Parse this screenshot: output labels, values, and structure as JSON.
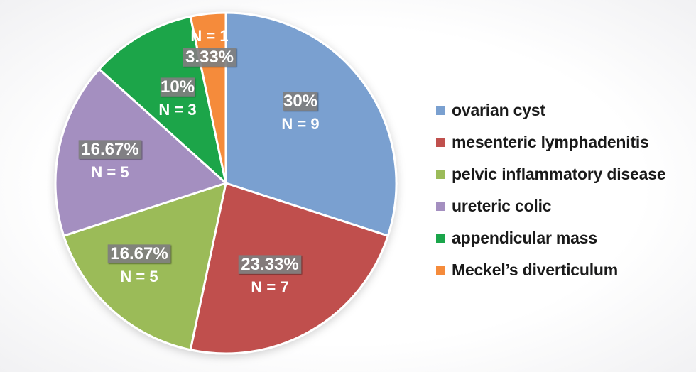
{
  "chart_data": {
    "type": "pie",
    "start_angle_deg": 0,
    "direction": "clockwise",
    "legend_position": "right",
    "slices": [
      {
        "name": "ovarian cyst",
        "percent": 30,
        "percent_label": "30%",
        "count": 9,
        "count_label": "N = 9",
        "color": "#7aa0d0"
      },
      {
        "name": "mesenteric lymphadenitis",
        "percent": 23.33,
        "percent_label": "23.33%",
        "count": 7,
        "count_label": "N = 7",
        "color": "#c0504d"
      },
      {
        "name": "pelvic inflammatory disease",
        "percent": 16.67,
        "percent_label": "16.67%",
        "count": 5,
        "count_label": "N = 5",
        "color": "#9bbb59"
      },
      {
        "name": "ureteric colic",
        "percent": 16.67,
        "percent_label": "16.67%",
        "count": 5,
        "count_label": "N = 5",
        "color": "#a48fc0"
      },
      {
        "name": "appendicular mass",
        "percent": 10,
        "percent_label": "10%",
        "count": 3,
        "count_label": "N = 3",
        "color": "#1aa54a"
      },
      {
        "name": "Meckel’s diverticulum",
        "percent": 3.33,
        "percent_label": "3.33%",
        "count": 1,
        "count_label": "N = 1",
        "color": "#f58b3b"
      }
    ]
  }
}
